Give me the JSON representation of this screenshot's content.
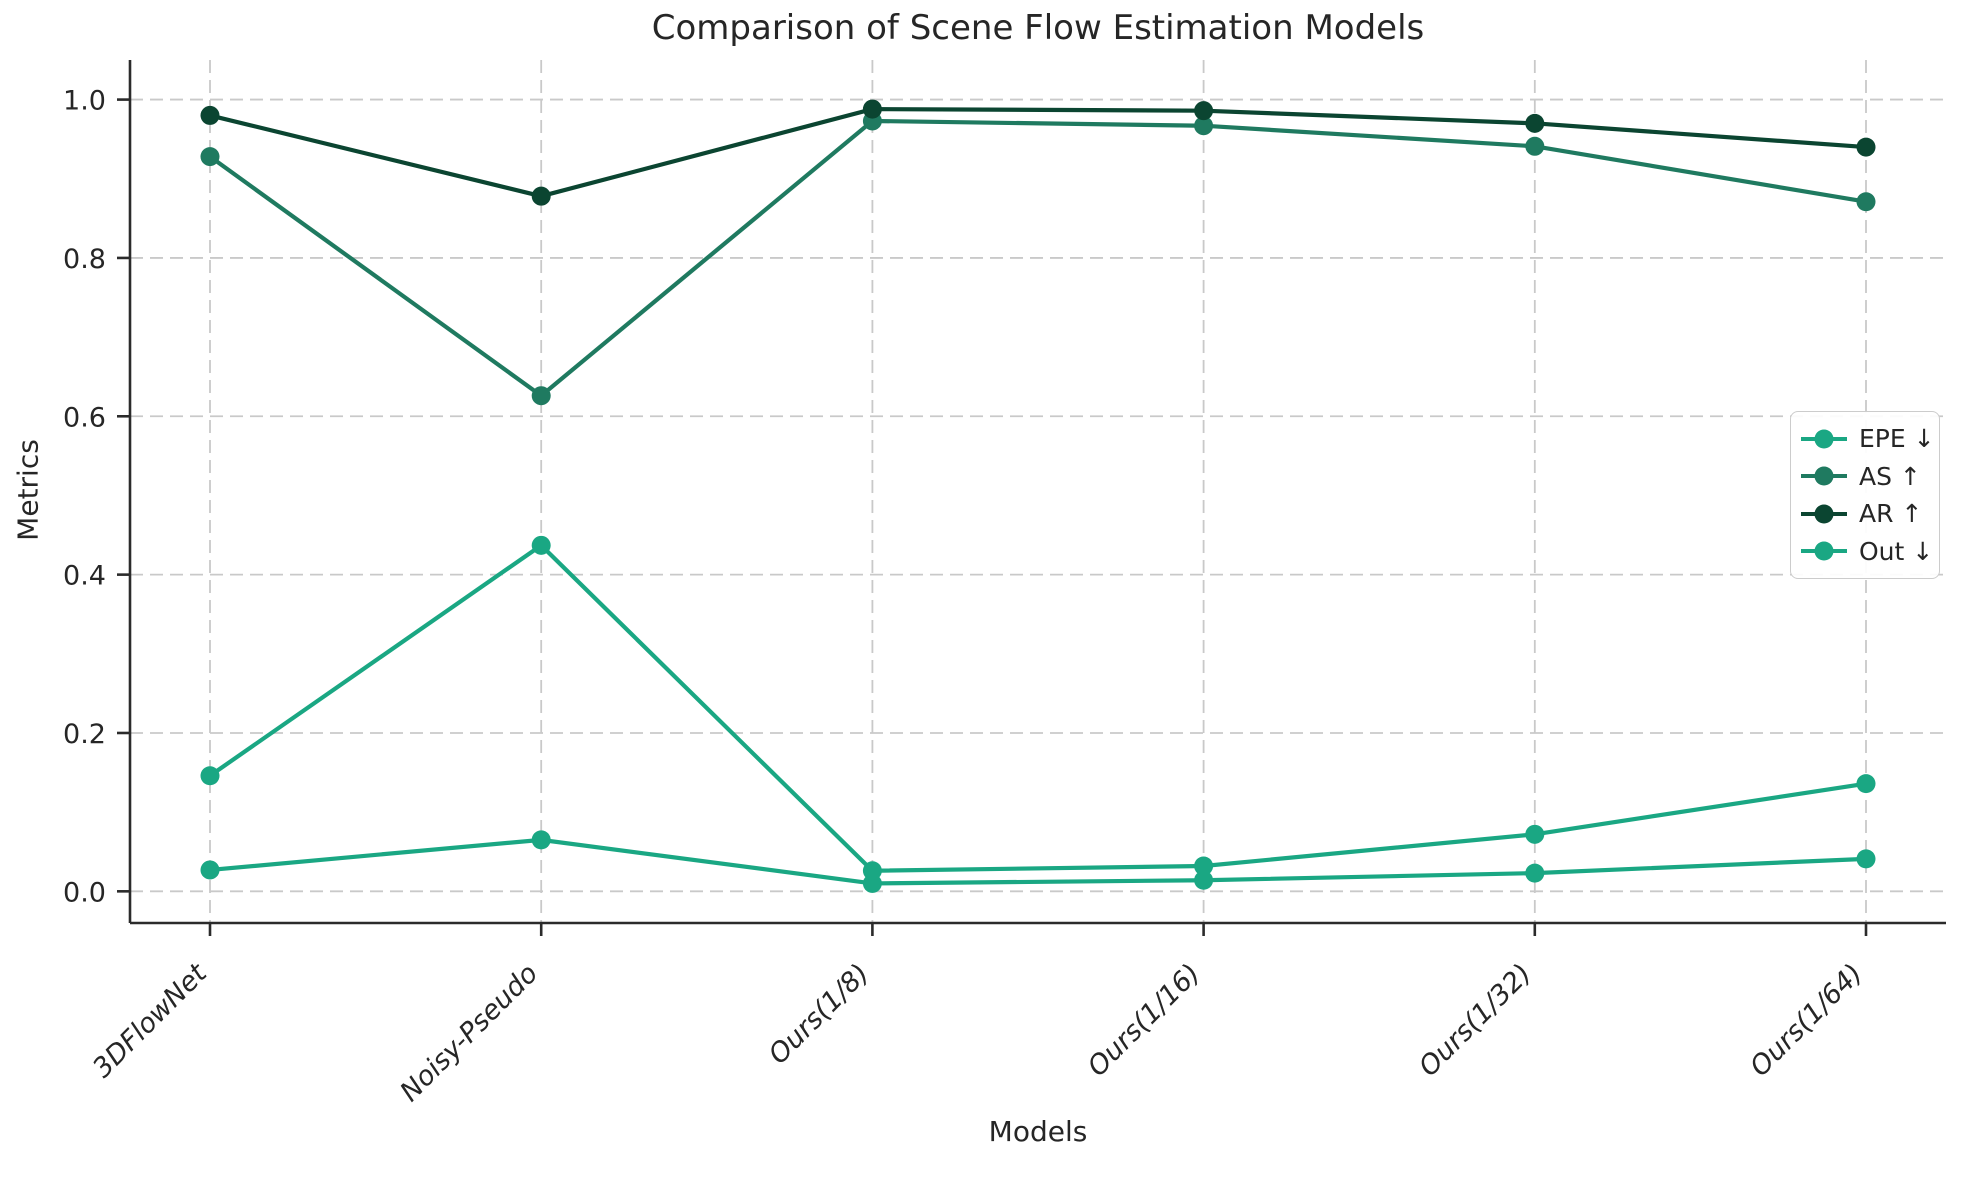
{
  "chart_data": {
    "type": "line",
    "title": "Comparison of Scene Flow Estimation Models",
    "xlabel": "Models",
    "ylabel": "Metrics",
    "categories": [
      "3DFlowNet",
      "Noisy-Pseudo",
      "Ours(1/8)",
      "Ours(1/16)",
      "Ours(1/32)",
      "Ours(1/64)"
    ],
    "yticklabels": [
      "0.0",
      "0.2",
      "0.4",
      "0.6",
      "0.8",
      "1.0"
    ],
    "ylim": [
      -0.04,
      1.05
    ],
    "grid": "dashed, both axes",
    "legend_position": "center right",
    "marker": "circle",
    "series": [
      {
        "name": "EPE ↓",
        "color": "#1aa783",
        "values": [
          0.027,
          0.065,
          0.01,
          0.014,
          0.023,
          0.041
        ]
      },
      {
        "name": "AS ↑",
        "color": "#1f7a60",
        "values": [
          0.928,
          0.626,
          0.973,
          0.967,
          0.941,
          0.871
        ]
      },
      {
        "name": "AR ↑",
        "color": "#0b4531",
        "values": [
          0.98,
          0.878,
          0.988,
          0.986,
          0.97,
          0.94
        ]
      },
      {
        "name": "Out ↓",
        "color": "#1aa783",
        "values": [
          0.146,
          0.437,
          0.026,
          0.032,
          0.072,
          0.136
        ]
      }
    ],
    "colors": {
      "text": "#262626",
      "grid": "#c9c9c9",
      "spine": "#2b2b2b",
      "background": "#ffffff"
    }
  }
}
